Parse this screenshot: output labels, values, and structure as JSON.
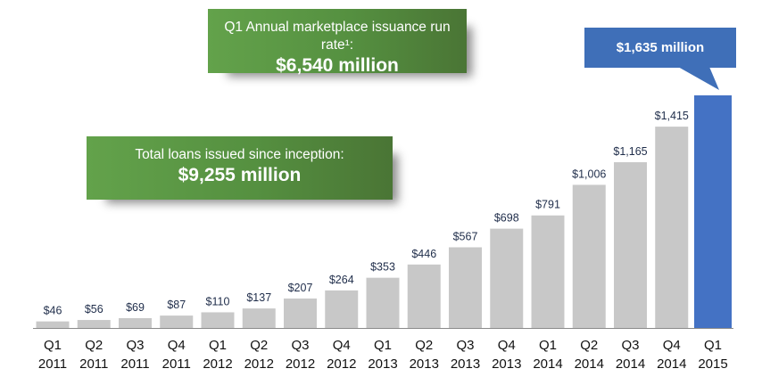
{
  "callouts": {
    "run_rate": {
      "label": "Q1 Annual marketplace issuance run rate¹:",
      "value": "$6,540 million"
    },
    "total": {
      "label": "Total loans issued since inception:",
      "value": "$9,255 million"
    },
    "latest": {
      "value": "$1,635 million"
    }
  },
  "colors": {
    "bar": "#c8c8c8",
    "highlight_bar": "#4472c4",
    "callout_green": "#5a9644",
    "value_label": "#1f2d4a"
  },
  "chart_data": {
    "type": "bar",
    "title": "",
    "xlabel": "",
    "ylabel": "",
    "grid": false,
    "ylim": [
      0,
      1650
    ],
    "categories": [
      [
        "Q1",
        "2011"
      ],
      [
        "Q2",
        "2011"
      ],
      [
        "Q3",
        "2011"
      ],
      [
        "Q4",
        "2011"
      ],
      [
        "Q1",
        "2012"
      ],
      [
        "Q2",
        "2012"
      ],
      [
        "Q3",
        "2012"
      ],
      [
        "Q4",
        "2012"
      ],
      [
        "Q1",
        "2013"
      ],
      [
        "Q2",
        "2013"
      ],
      [
        "Q3",
        "2013"
      ],
      [
        "Q4",
        "2013"
      ],
      [
        "Q1",
        "2014"
      ],
      [
        "Q2",
        "2014"
      ],
      [
        "Q3",
        "2014"
      ],
      [
        "Q4",
        "2014"
      ],
      [
        "Q1",
        "2015"
      ]
    ],
    "values": [
      46,
      56,
      69,
      87,
      110,
      137,
      207,
      264,
      353,
      446,
      567,
      698,
      791,
      1006,
      1165,
      1415,
      1635
    ],
    "data_labels": [
      "$46",
      "$56",
      "$69",
      "$87",
      "$110",
      "$137",
      "$207",
      "$264",
      "$353",
      "$446",
      "$567",
      "$698",
      "$791",
      "$1,006",
      "$1,165",
      "$1,415",
      ""
    ],
    "highlight_index": 16
  }
}
